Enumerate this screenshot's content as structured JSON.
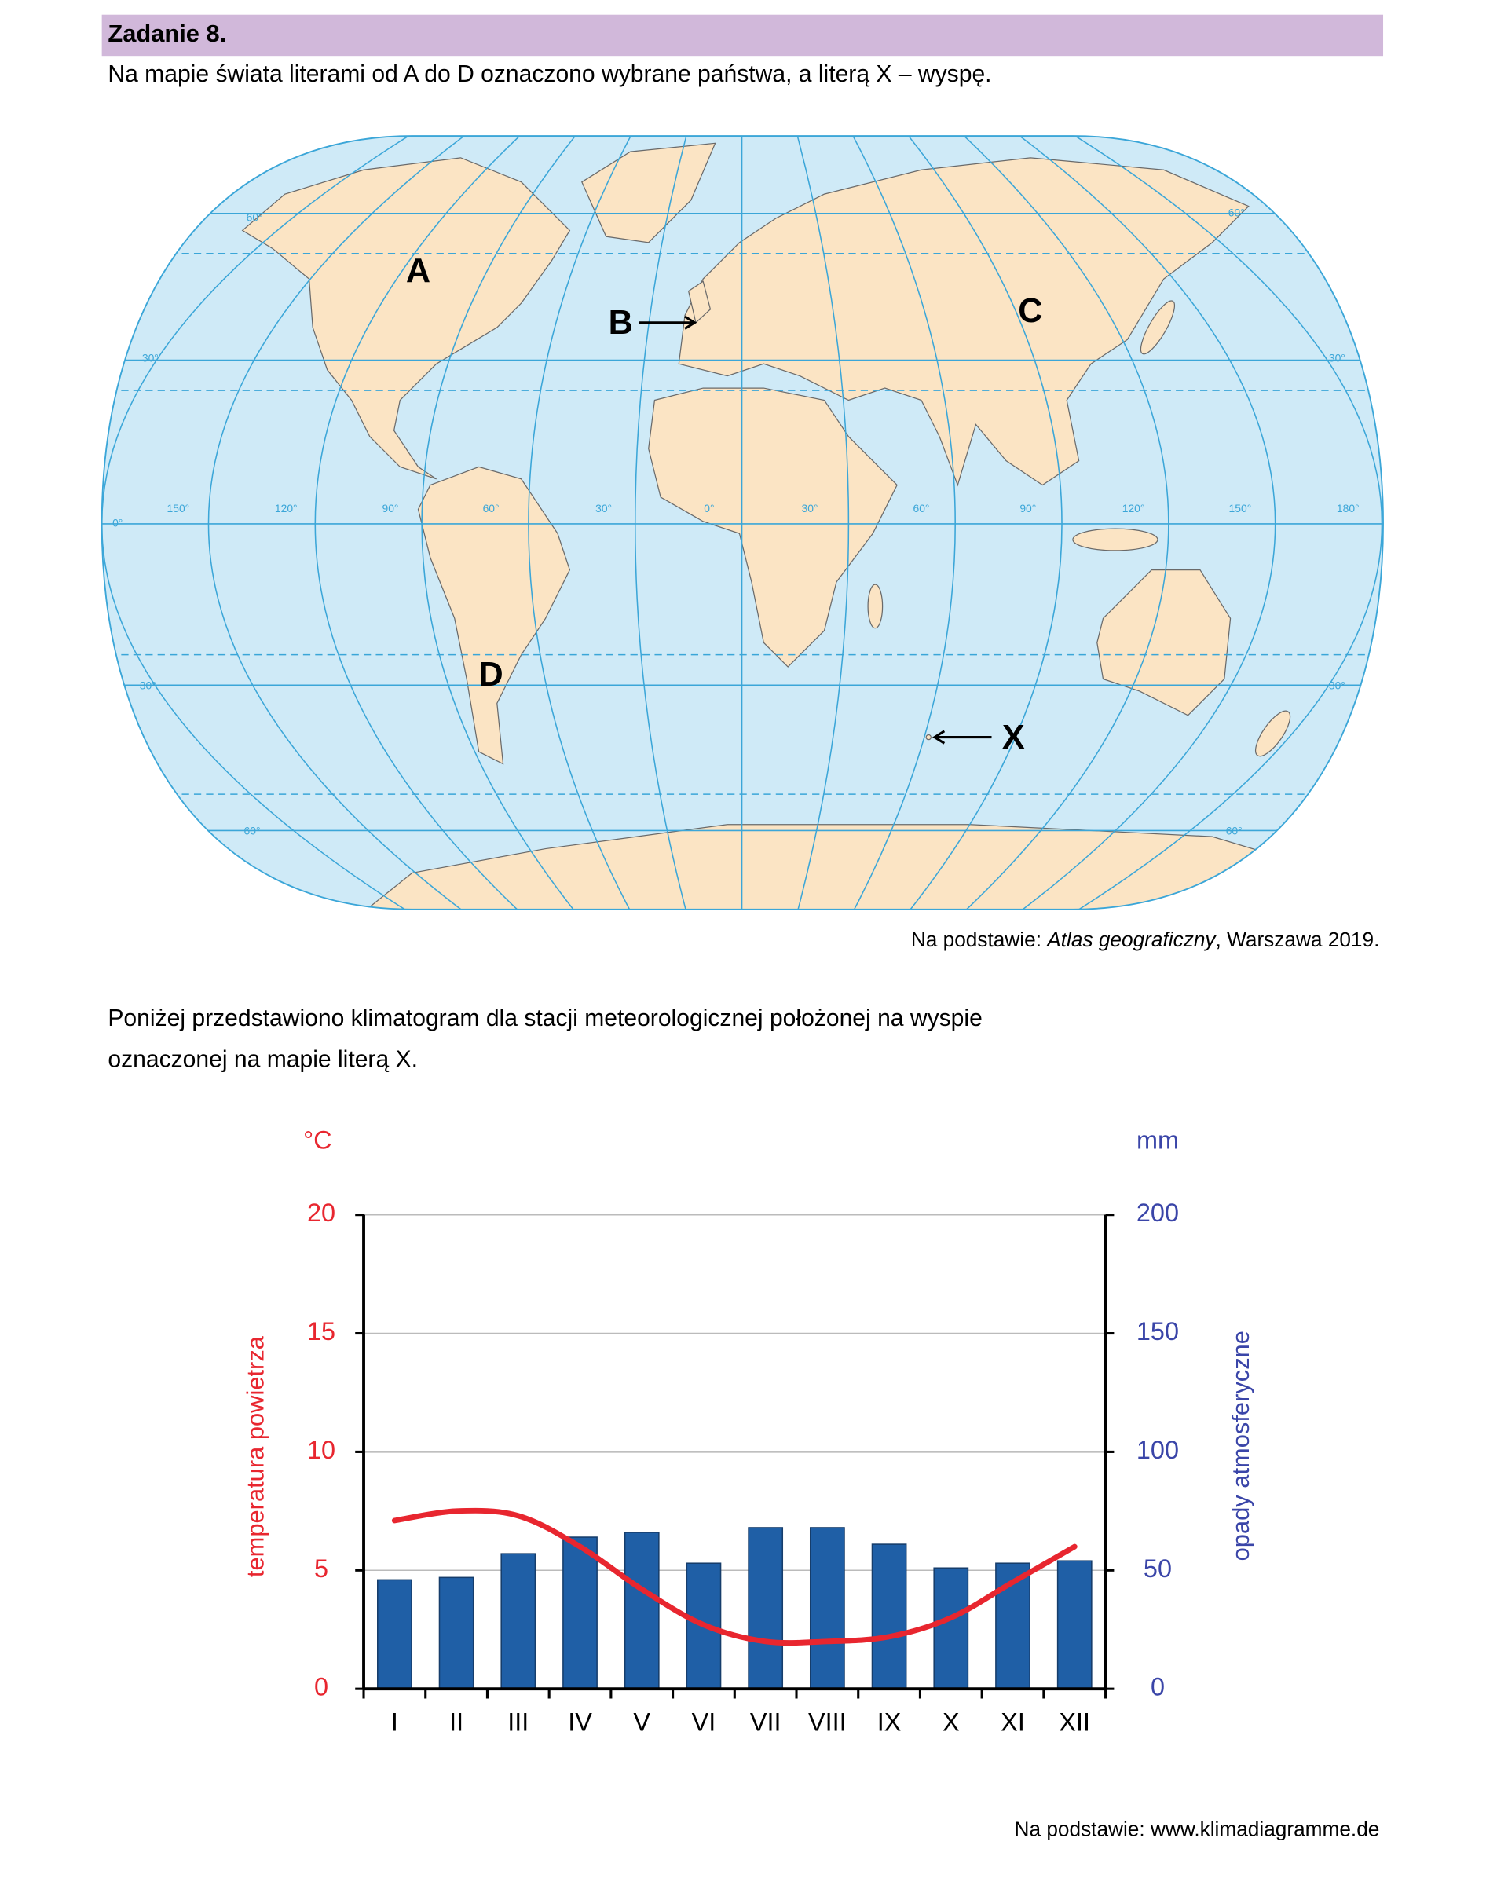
{
  "header": {
    "title": "Zadanie 8.",
    "text": "Na mapie świata literami od A do D oznaczono wybrane państwa, a literą X – wyspę."
  },
  "map": {
    "labels": [
      "A",
      "B",
      "C",
      "D",
      "X"
    ],
    "grid_labels": [
      "60°",
      "30°",
      "0°",
      "30°",
      "60°",
      "60°",
      "30°",
      "30°",
      "60°",
      "150°",
      "120°",
      "90°",
      "60°",
      "30°",
      "0°",
      "30°",
      "60°",
      "90°",
      "120°",
      "150°",
      "180°"
    ],
    "source": {
      "prefix": "Na podstawie: ",
      "title": "Atlas geograficzny",
      "suffix": ", Warszawa 2019."
    }
  },
  "intro": [
    "Poniżej przedstawiono klimatogram dla stacji meteorologicznej położonej na wyspie",
    "oznaczonej na mapie literą X."
  ],
  "chart_data": {
    "type": "combo",
    "y_unit": "°C",
    "y2_unit": "mm",
    "y_label": "temperatura powietrza",
    "y2_label": "opady atmosferyczne",
    "categories": [
      "I",
      "II",
      "III",
      "IV",
      "V",
      "VI",
      "VII",
      "VIII",
      "IX",
      "X",
      "XI",
      "XII"
    ],
    "ylim": [
      0,
      20
    ],
    "yticks": [
      0,
      5,
      10,
      15,
      20
    ],
    "y2lim": [
      0,
      200
    ],
    "y2ticks": [
      0,
      50,
      100,
      150,
      200
    ],
    "y_color": "#e8262f",
    "y2_color": "#3a45a8",
    "grid": true,
    "series": [
      {
        "type": "bar",
        "axis": "y2",
        "color": "#1f5fa6",
        "values": [
          46,
          47,
          57,
          64,
          66,
          53,
          68,
          68,
          61,
          51,
          53,
          54
        ]
      },
      {
        "type": "line",
        "color": "#e8262f",
        "values": [
          7.1,
          7.5,
          7.3,
          6.0,
          4.2,
          2.7,
          2.0,
          2.0,
          2.2,
          3.0,
          4.5,
          6.0
        ]
      }
    ]
  },
  "chart_source": "Na podstawie: www.klimadiagramme.de"
}
